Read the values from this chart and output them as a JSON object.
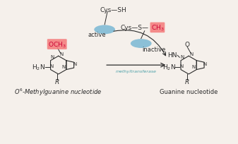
{
  "bg_color": "#f5f0eb",
  "ellipse_color": "#7ab8d4",
  "pink_highlight": "#f48080",
  "active_text": "active",
  "inactive_text": "inactive",
  "methyltransferase_text": "methyltransferase",
  "label_left": "$O^6$-Methylguanine nucleotide",
  "label_right": "Guanine nucleotide",
  "line_color": "#2c2c2c",
  "teal_text": "#4ba0a8",
  "pink_text_color": "#cc0033",
  "cys_sh": "Cys—SH",
  "cys_s": "Cys—S—",
  "ch3": "CH$_3$"
}
